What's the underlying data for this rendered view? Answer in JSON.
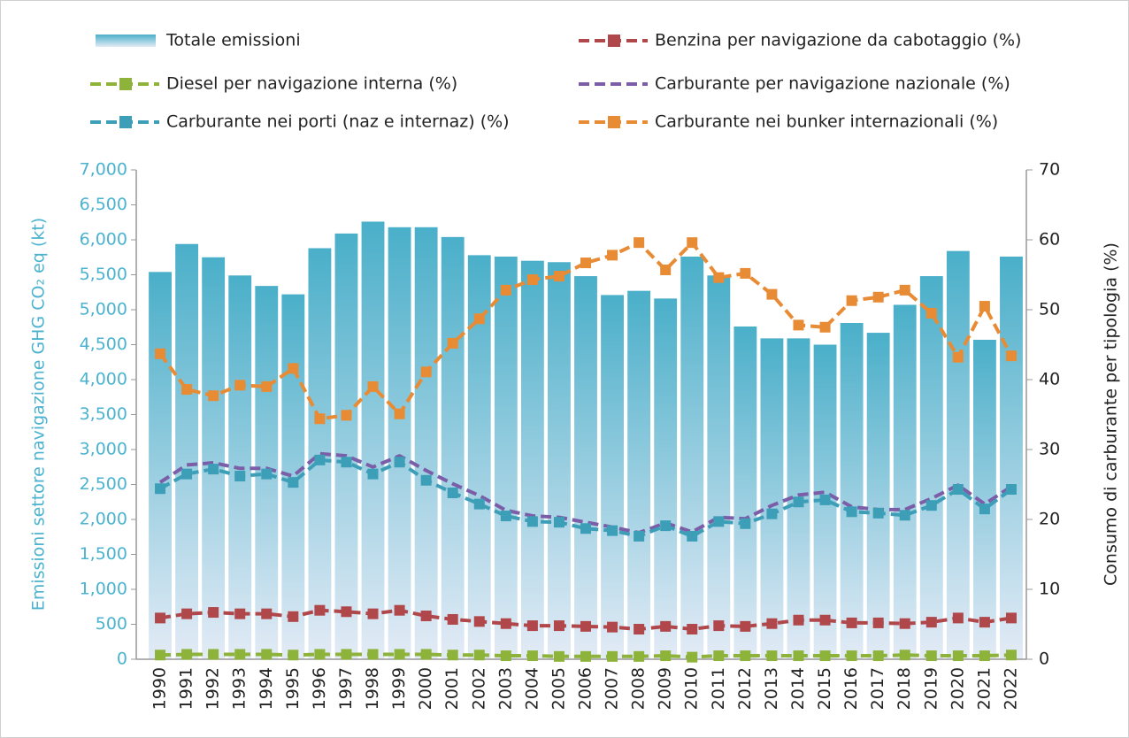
{
  "chart_data": {
    "type": "combo",
    "y_label": "Emissioni settore navigazione  GHG CO₂ eq (kt)",
    "y2_label": "Consumo di carburante per tipologia (%)",
    "categories": [
      "1990",
      "1991",
      "1992",
      "1993",
      "1994",
      "1995",
      "1996",
      "1997",
      "1998",
      "1999",
      "2000",
      "2001",
      "2002",
      "2003",
      "2004",
      "2005",
      "2006",
      "2007",
      "2008",
      "2009",
      "2010",
      "2011",
      "2012",
      "2013",
      "2014",
      "2015",
      "2016",
      "2017",
      "2018",
      "2019",
      "2020",
      "2021",
      "2022"
    ],
    "ylim": [
      0,
      7000
    ],
    "yticks": [
      0,
      500,
      {
        "value": 1000,
        "label": "1,000"
      },
      {
        "value": 1500,
        "label": "1,500"
      },
      {
        "value": 2000,
        "label": "2,000"
      },
      {
        "value": 2500,
        "label": "2,500"
      },
      {
        "value": 3000,
        "label": "3,000"
      },
      {
        "value": 3500,
        "label": "3,500"
      },
      {
        "value": 4000,
        "label": "4,000"
      },
      {
        "value": 4500,
        "label": "4,500"
      },
      {
        "value": 5000,
        "label": "5,000"
      },
      {
        "value": 5500,
        "label": "5,500"
      },
      {
        "value": 6000,
        "label": "6,000"
      },
      {
        "value": 6500,
        "label": "6,500"
      },
      {
        "value": 7000,
        "label": "7,000"
      }
    ],
    "y2lim": [
      0,
      70
    ],
    "y2ticks": [
      0,
      10,
      20,
      30,
      40,
      50,
      60,
      70
    ],
    "grid": false,
    "series": [
      {
        "name": "Totale emissioni",
        "type": "bar",
        "color": "#4aafc9",
        "values": [
          5540,
          5940,
          5750,
          5490,
          5340,
          5220,
          5880,
          6090,
          6260,
          6180,
          6180,
          6040,
          5780,
          5760,
          5700,
          5680,
          5480,
          5210,
          5270,
          5160,
          5760,
          5490,
          4760,
          4590,
          4590,
          4500,
          4810,
          4670,
          5070,
          5480,
          5840,
          4570,
          5760
        ]
      },
      {
        "name": "Benzina per navigazione da cabotaggio (%)",
        "type": "line",
        "axis": "y2",
        "marker": "square",
        "color": "#b0474a",
        "values": [
          5.9,
          6.5,
          6.7,
          6.5,
          6.5,
          6.1,
          7.0,
          6.8,
          6.5,
          7.0,
          6.2,
          5.7,
          5.4,
          5.1,
          4.8,
          4.8,
          4.7,
          4.6,
          4.3,
          4.7,
          4.3,
          4.8,
          4.7,
          5.1,
          5.6,
          5.6,
          5.2,
          5.2,
          5.1,
          5.3,
          5.9,
          5.3,
          5.9
        ]
      },
      {
        "name": "Diesel per navigazione interna (%)",
        "type": "line",
        "axis": "y2",
        "marker": "square",
        "color": "#8db33a",
        "values": [
          0.6,
          0.7,
          0.7,
          0.7,
          0.7,
          0.6,
          0.7,
          0.7,
          0.7,
          0.7,
          0.7,
          0.6,
          0.6,
          0.5,
          0.5,
          0.4,
          0.4,
          0.4,
          0.4,
          0.5,
          0.3,
          0.5,
          0.5,
          0.5,
          0.5,
          0.5,
          0.5,
          0.5,
          0.6,
          0.5,
          0.5,
          0.5,
          0.6
        ]
      },
      {
        "name": "Carburante per navigazione nazionale (%)",
        "type": "line",
        "axis": "y2",
        "marker": "none",
        "color": "#7b5ea7",
        "values": [
          25.3,
          27.8,
          28.1,
          27.3,
          27.3,
          26.2,
          29.4,
          29.1,
          27.5,
          29.1,
          27.0,
          25.1,
          23.4,
          21.3,
          20.5,
          20.3,
          19.6,
          18.9,
          18.1,
          19.5,
          18.2,
          20.3,
          20.1,
          22.0,
          23.5,
          23.9,
          21.8,
          21.4,
          21.4,
          23.0,
          24.9,
          22.2,
          24.7
        ]
      },
      {
        "name": "Carburante nei porti (naz e internaz) (%)",
        "type": "line",
        "axis": "y2",
        "marker": "square",
        "color": "#3d9eb7",
        "values": [
          24.4,
          26.5,
          27.2,
          26.2,
          26.5,
          25.3,
          28.5,
          28.2,
          26.5,
          28.2,
          25.6,
          23.8,
          22.2,
          20.5,
          19.7,
          19.6,
          18.7,
          18.4,
          17.6,
          19.1,
          17.6,
          19.7,
          19.4,
          20.8,
          22.5,
          22.8,
          21.1,
          20.9,
          20.6,
          22.0,
          24.3,
          21.5,
          24.3
        ]
      },
      {
        "name": "Carburante nei bunker internazionali (%)",
        "type": "line",
        "axis": "y2",
        "marker": "square",
        "color": "#e88b35",
        "values": [
          43.7,
          38.6,
          37.7,
          39.2,
          39.0,
          41.6,
          34.4,
          34.9,
          39.0,
          35.1,
          41.1,
          45.2,
          48.7,
          52.8,
          54.3,
          54.8,
          56.7,
          57.8,
          59.6,
          55.7,
          59.6,
          54.6,
          55.2,
          52.2,
          47.8,
          47.5,
          51.3,
          51.8,
          52.8,
          49.5,
          43.2,
          50.5,
          43.4
        ]
      }
    ]
  }
}
